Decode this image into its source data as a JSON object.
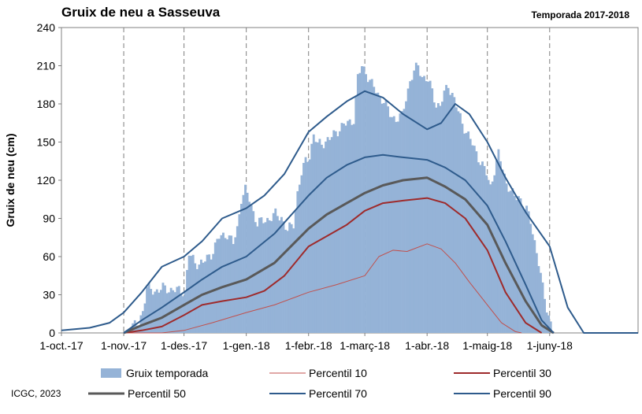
{
  "chart_data": {
    "type": "area",
    "title": "Gruix de neu a Sasseuva",
    "subtitle": "Temporada 2017-2018",
    "ylabel": "Gruix de neu (cm)",
    "xlabel": "",
    "ylim": [
      0,
      240
    ],
    "yticks": [
      0,
      30,
      60,
      90,
      120,
      150,
      180,
      210,
      240
    ],
    "x_range": [
      "2017-10-01",
      "2018-07-15"
    ],
    "xtick_labels": [
      {
        "date": "2017-10-01",
        "label": "1-oct.-17"
      },
      {
        "date": "2017-11-01",
        "label": "1-nov.-17"
      },
      {
        "date": "2017-12-01",
        "label": "1-des.-17"
      },
      {
        "date": "2018-01-01",
        "label": "1-gen.-18"
      },
      {
        "date": "2018-02-01",
        "label": "1-febr.-18"
      },
      {
        "date": "2018-03-01",
        "label": "1-març-18"
      },
      {
        "date": "2018-04-01",
        "label": "1-abr.-18"
      },
      {
        "date": "2018-05-01",
        "label": "1-maig-18"
      },
      {
        "date": "2018-06-01",
        "label": "1-juny-18"
      }
    ],
    "grid": "vertical dashed",
    "legend_position": "bottom",
    "series": [
      {
        "name": "Gruix temporada",
        "kind": "bar",
        "color": "#95b3d7",
        "points": [
          [
            "2017-11-01",
            0
          ],
          [
            "2017-11-08",
            8
          ],
          [
            "2017-11-10",
            18
          ],
          [
            "2017-11-12",
            35
          ],
          [
            "2017-11-16",
            33
          ],
          [
            "2017-11-20",
            35
          ],
          [
            "2017-11-25",
            34
          ],
          [
            "2017-11-28",
            33
          ],
          [
            "2017-12-01",
            33
          ],
          [
            "2017-12-02",
            48
          ],
          [
            "2017-12-03",
            62
          ],
          [
            "2017-12-06",
            55
          ],
          [
            "2017-12-10",
            55
          ],
          [
            "2017-12-14",
            62
          ],
          [
            "2017-12-18",
            75
          ],
          [
            "2017-12-22",
            78
          ],
          [
            "2017-12-25",
            70
          ],
          [
            "2017-12-27",
            82
          ],
          [
            "2017-12-29",
            106
          ],
          [
            "2017-12-31",
            112
          ],
          [
            "2018-01-02",
            105
          ],
          [
            "2018-01-04",
            95
          ],
          [
            "2018-01-06",
            86
          ],
          [
            "2018-01-09",
            88
          ],
          [
            "2018-01-12",
            90
          ],
          [
            "2018-01-15",
            93
          ],
          [
            "2018-01-18",
            91
          ],
          [
            "2018-01-21",
            80
          ],
          [
            "2018-01-24",
            86
          ],
          [
            "2018-01-26",
            110
          ],
          [
            "2018-01-28",
            125
          ],
          [
            "2018-01-30",
            135
          ],
          [
            "2018-02-01",
            140
          ],
          [
            "2018-02-03",
            155
          ],
          [
            "2018-02-05",
            148
          ],
          [
            "2018-02-08",
            150
          ],
          [
            "2018-02-11",
            152
          ],
          [
            "2018-02-14",
            158
          ],
          [
            "2018-02-17",
            162
          ],
          [
            "2018-02-20",
            165
          ],
          [
            "2018-02-23",
            168
          ],
          [
            "2018-02-25",
            200
          ],
          [
            "2018-02-27",
            210
          ],
          [
            "2018-03-01",
            205
          ],
          [
            "2018-03-04",
            195
          ],
          [
            "2018-03-07",
            188
          ],
          [
            "2018-03-10",
            182
          ],
          [
            "2018-03-13",
            172
          ],
          [
            "2018-03-16",
            168
          ],
          [
            "2018-03-19",
            170
          ],
          [
            "2018-03-21",
            185
          ],
          [
            "2018-03-23",
            198
          ],
          [
            "2018-03-25",
            205
          ],
          [
            "2018-03-27",
            210
          ],
          [
            "2018-03-29",
            202
          ],
          [
            "2018-04-01",
            198
          ],
          [
            "2018-04-03",
            190
          ],
          [
            "2018-04-05",
            180
          ],
          [
            "2018-04-07",
            178
          ],
          [
            "2018-04-09",
            188
          ],
          [
            "2018-04-11",
            195
          ],
          [
            "2018-04-13",
            188
          ],
          [
            "2018-04-15",
            178
          ],
          [
            "2018-04-18",
            165
          ],
          [
            "2018-04-21",
            155
          ],
          [
            "2018-04-24",
            145
          ],
          [
            "2018-04-27",
            135
          ],
          [
            "2018-04-30",
            125
          ],
          [
            "2018-05-02",
            115
          ],
          [
            "2018-05-04",
            128
          ],
          [
            "2018-05-06",
            140
          ],
          [
            "2018-05-08",
            130
          ],
          [
            "2018-05-10",
            118
          ],
          [
            "2018-05-12",
            112
          ],
          [
            "2018-05-14",
            106
          ],
          [
            "2018-05-16",
            108
          ],
          [
            "2018-05-18",
            102
          ],
          [
            "2018-05-20",
            96
          ],
          [
            "2018-05-22",
            88
          ],
          [
            "2018-05-24",
            72
          ],
          [
            "2018-05-26",
            55
          ],
          [
            "2018-05-28",
            35
          ],
          [
            "2018-05-30",
            20
          ],
          [
            "2018-06-01",
            8
          ],
          [
            "2018-06-02",
            0
          ]
        ]
      },
      {
        "name": "Percentil 10",
        "kind": "line",
        "color": "#c0504d",
        "width": 1,
        "points": [
          [
            "2017-11-01",
            0
          ],
          [
            "2017-11-20",
            0
          ],
          [
            "2017-12-01",
            2
          ],
          [
            "2017-12-15",
            8
          ],
          [
            "2018-01-01",
            16
          ],
          [
            "2018-01-15",
            22
          ],
          [
            "2018-02-01",
            32
          ],
          [
            "2018-02-15",
            38
          ],
          [
            "2018-03-01",
            45
          ],
          [
            "2018-03-08",
            60
          ],
          [
            "2018-03-15",
            65
          ],
          [
            "2018-03-22",
            64
          ],
          [
            "2018-04-01",
            70
          ],
          [
            "2018-04-08",
            66
          ],
          [
            "2018-04-15",
            55
          ],
          [
            "2018-04-22",
            40
          ],
          [
            "2018-05-01",
            22
          ],
          [
            "2018-05-08",
            8
          ],
          [
            "2018-05-15",
            1
          ],
          [
            "2018-05-18",
            0
          ]
        ]
      },
      {
        "name": "Percentil 30",
        "kind": "line",
        "color": "#9e2a2b",
        "width": 2,
        "points": [
          [
            "2017-11-01",
            0
          ],
          [
            "2017-11-10",
            2
          ],
          [
            "2017-11-20",
            5
          ],
          [
            "2017-12-01",
            14
          ],
          [
            "2017-12-10",
            22
          ],
          [
            "2017-12-20",
            25
          ],
          [
            "2018-01-01",
            28
          ],
          [
            "2018-01-10",
            33
          ],
          [
            "2018-01-20",
            45
          ],
          [
            "2018-02-01",
            68
          ],
          [
            "2018-02-10",
            76
          ],
          [
            "2018-02-20",
            85
          ],
          [
            "2018-03-01",
            96
          ],
          [
            "2018-03-10",
            102
          ],
          [
            "2018-03-20",
            104
          ],
          [
            "2018-04-01",
            106
          ],
          [
            "2018-04-10",
            102
          ],
          [
            "2018-04-20",
            90
          ],
          [
            "2018-05-01",
            65
          ],
          [
            "2018-05-10",
            32
          ],
          [
            "2018-05-20",
            8
          ],
          [
            "2018-05-28",
            0
          ]
        ]
      },
      {
        "name": "Percentil 50",
        "kind": "line",
        "color": "#595959",
        "width": 3,
        "points": [
          [
            "2017-11-01",
            0
          ],
          [
            "2017-11-10",
            6
          ],
          [
            "2017-11-20",
            12
          ],
          [
            "2017-12-01",
            22
          ],
          [
            "2017-12-10",
            30
          ],
          [
            "2017-12-20",
            36
          ],
          [
            "2018-01-01",
            42
          ],
          [
            "2018-01-15",
            55
          ],
          [
            "2018-02-01",
            82
          ],
          [
            "2018-02-10",
            93
          ],
          [
            "2018-02-20",
            102
          ],
          [
            "2018-03-01",
            110
          ],
          [
            "2018-03-10",
            116
          ],
          [
            "2018-03-20",
            120
          ],
          [
            "2018-04-01",
            122
          ],
          [
            "2018-04-10",
            115
          ],
          [
            "2018-04-20",
            105
          ],
          [
            "2018-05-01",
            85
          ],
          [
            "2018-05-10",
            55
          ],
          [
            "2018-05-20",
            25
          ],
          [
            "2018-05-28",
            6
          ],
          [
            "2018-06-03",
            0
          ]
        ]
      },
      {
        "name": "Percentil 70",
        "kind": "line",
        "color": "#2e5b8c",
        "width": 2,
        "points": [
          [
            "2017-11-01",
            0
          ],
          [
            "2017-11-10",
            10
          ],
          [
            "2017-11-20",
            20
          ],
          [
            "2017-12-01",
            32
          ],
          [
            "2017-12-10",
            42
          ],
          [
            "2017-12-20",
            52
          ],
          [
            "2018-01-01",
            60
          ],
          [
            "2018-01-15",
            78
          ],
          [
            "2018-02-01",
            108
          ],
          [
            "2018-02-10",
            122
          ],
          [
            "2018-02-20",
            132
          ],
          [
            "2018-03-01",
            138
          ],
          [
            "2018-03-10",
            140
          ],
          [
            "2018-03-20",
            138
          ],
          [
            "2018-04-01",
            136
          ],
          [
            "2018-04-10",
            130
          ],
          [
            "2018-04-20",
            120
          ],
          [
            "2018-05-01",
            100
          ],
          [
            "2018-05-10",
            72
          ],
          [
            "2018-05-20",
            38
          ],
          [
            "2018-05-28",
            10
          ],
          [
            "2018-06-03",
            0
          ]
        ]
      },
      {
        "name": "Percentil 90",
        "kind": "line",
        "color": "#2e5b8c",
        "width": 2,
        "points": [
          [
            "2017-10-01",
            2
          ],
          [
            "2017-10-15",
            4
          ],
          [
            "2017-10-25",
            8
          ],
          [
            "2017-11-01",
            16
          ],
          [
            "2017-11-10",
            32
          ],
          [
            "2017-11-20",
            52
          ],
          [
            "2017-12-01",
            60
          ],
          [
            "2017-12-10",
            72
          ],
          [
            "2017-12-20",
            90
          ],
          [
            "2018-01-01",
            98
          ],
          [
            "2018-01-10",
            108
          ],
          [
            "2018-01-20",
            125
          ],
          [
            "2018-02-01",
            158
          ],
          [
            "2018-02-10",
            170
          ],
          [
            "2018-02-20",
            182
          ],
          [
            "2018-03-01",
            190
          ],
          [
            "2018-03-10",
            185
          ],
          [
            "2018-03-20",
            172
          ],
          [
            "2018-04-01",
            160
          ],
          [
            "2018-04-08",
            165
          ],
          [
            "2018-04-15",
            180
          ],
          [
            "2018-04-22",
            172
          ],
          [
            "2018-05-01",
            150
          ],
          [
            "2018-05-10",
            122
          ],
          [
            "2018-05-20",
            95
          ],
          [
            "2018-06-01",
            68
          ],
          [
            "2018-06-10",
            20
          ],
          [
            "2018-06-18",
            0
          ],
          [
            "2018-07-15",
            0
          ]
        ]
      }
    ],
    "legend": [
      {
        "series": "Gruix temporada",
        "label": "Gruix temporada"
      },
      {
        "series": "Percentil 10",
        "label": "Percentil 10"
      },
      {
        "series": "Percentil 30",
        "label": "Percentil 30"
      },
      {
        "series": "Percentil 50",
        "label": "Percentil 50"
      },
      {
        "series": "Percentil 70",
        "label": "Percentil 70"
      },
      {
        "series": "Percentil 90",
        "label": "Percentil 90"
      }
    ]
  },
  "source": "ICGC, 2023"
}
